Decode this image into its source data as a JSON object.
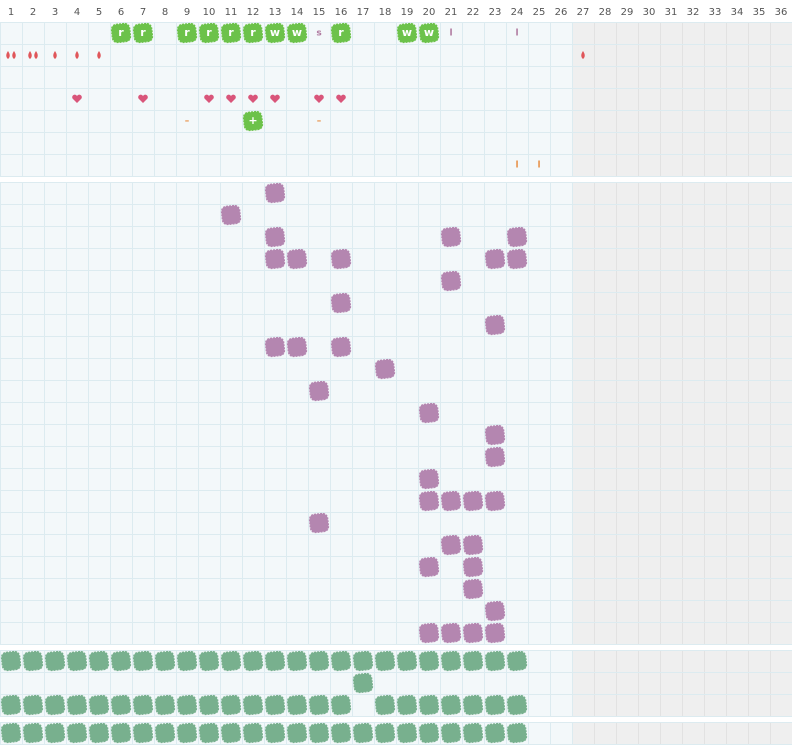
{
  "header": {
    "columns": [
      1,
      2,
      3,
      4,
      5,
      6,
      7,
      8,
      9,
      10,
      11,
      12,
      13,
      14,
      15,
      16,
      17,
      18,
      19,
      20,
      21,
      22,
      23,
      24,
      25,
      26,
      27,
      28,
      29,
      30,
      31,
      32,
      33,
      34,
      35,
      36
    ]
  },
  "top": {
    "rows": [
      [
        {
          "col": 6,
          "text": "r",
          "style": "tile"
        },
        {
          "col": 7,
          "text": "r",
          "style": "tile"
        },
        {
          "col": 9,
          "text": "r",
          "style": "tile"
        },
        {
          "col": 10,
          "text": "r",
          "style": "tile"
        },
        {
          "col": 11,
          "text": "r",
          "style": "tile"
        },
        {
          "col": 12,
          "text": "r",
          "style": "tile"
        },
        {
          "col": 13,
          "text": "w",
          "style": "tile"
        },
        {
          "col": 14,
          "text": "w",
          "style": "tile"
        },
        {
          "col": 15,
          "text": "s",
          "style": "purple"
        },
        {
          "col": 16,
          "text": "r",
          "style": "tile"
        },
        {
          "col": 19,
          "text": "w",
          "style": "tile"
        },
        {
          "col": 20,
          "text": "w",
          "style": "tile"
        },
        {
          "col": 21,
          "text": "l",
          "style": "purple"
        },
        {
          "col": 24,
          "text": "l",
          "style": "purple"
        }
      ],
      [
        {
          "col": 1,
          "icon": "drop",
          "count": 2
        },
        {
          "col": 2,
          "icon": "drop",
          "count": 2
        },
        {
          "col": 3,
          "icon": "drop",
          "count": 1
        },
        {
          "col": 4,
          "icon": "drop",
          "count": 1
        },
        {
          "col": 5,
          "icon": "drop",
          "count": 1
        },
        {
          "col": 27,
          "icon": "drop",
          "count": 1
        }
      ],
      [],
      [
        {
          "col": 4,
          "icon": "heart"
        },
        {
          "col": 7,
          "icon": "heart"
        },
        {
          "col": 10,
          "icon": "heart"
        },
        {
          "col": 11,
          "icon": "heart"
        },
        {
          "col": 12,
          "icon": "heart"
        },
        {
          "col": 13,
          "icon": "heart"
        },
        {
          "col": 15,
          "icon": "heart"
        },
        {
          "col": 16,
          "icon": "heart"
        }
      ],
      [
        {
          "col": 9,
          "text": "–",
          "style": "orange"
        },
        {
          "col": 12,
          "text": "+",
          "style": "tile"
        },
        {
          "col": 15,
          "text": "–",
          "style": "orange"
        }
      ],
      [],
      [
        {
          "col": 24,
          "text": "l",
          "style": "orange"
        },
        {
          "col": 25,
          "text": "l",
          "style": "orange"
        }
      ]
    ]
  },
  "middle": {
    "rows": [
      [
        13
      ],
      [
        11
      ],
      [
        13,
        21,
        24
      ],
      [
        13,
        14,
        16,
        23,
        24
      ],
      [
        21
      ],
      [
        16
      ],
      [
        23
      ],
      [
        13,
        14,
        16
      ],
      [
        18
      ],
      [
        15
      ],
      [
        20
      ],
      [
        23
      ],
      [
        23
      ],
      [
        20
      ],
      [
        20,
        21,
        22,
        23
      ],
      [
        15
      ],
      [
        21,
        22
      ],
      [
        20,
        22
      ],
      [
        22
      ],
      [
        23
      ],
      [
        20,
        21,
        22,
        23
      ]
    ]
  },
  "lower": {
    "rows": [
      [
        1,
        2,
        3,
        4,
        5,
        6,
        7,
        8,
        9,
        10,
        11,
        12,
        13,
        14,
        15,
        16,
        17,
        18,
        19,
        20,
        21,
        22,
        23,
        24
      ],
      [
        17
      ],
      [
        1,
        2,
        3,
        4,
        5,
        6,
        7,
        8,
        9,
        10,
        11,
        12,
        13,
        14,
        15,
        16,
        18,
        19,
        20,
        21,
        22,
        23,
        24
      ]
    ]
  },
  "bottom": {
    "rows": [
      [
        1,
        2,
        3,
        4,
        5,
        6,
        7,
        8,
        9,
        10,
        11,
        12,
        13,
        14,
        15,
        16,
        17,
        18,
        19,
        20,
        21,
        22,
        23,
        24
      ]
    ]
  }
}
